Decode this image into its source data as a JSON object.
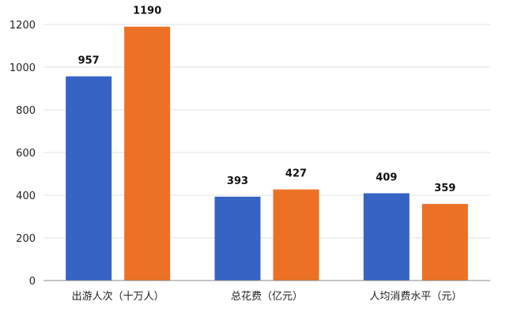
{
  "chart_data": {
    "type": "bar",
    "categories": [
      "出游人次（十万人）",
      "总花费（亿元）",
      "人均消费水平（元）"
    ],
    "series": [
      {
        "values": [
          957,
          393,
          409
        ],
        "color": "#3763C5"
      },
      {
        "values": [
          1190,
          427,
          359
        ],
        "color": "#EC7125"
      }
    ],
    "ylim": [
      0,
      1200
    ],
    "yticks": [
      0,
      200,
      400,
      600,
      800,
      1000,
      1200
    ],
    "grid": true,
    "legend": "none"
  }
}
